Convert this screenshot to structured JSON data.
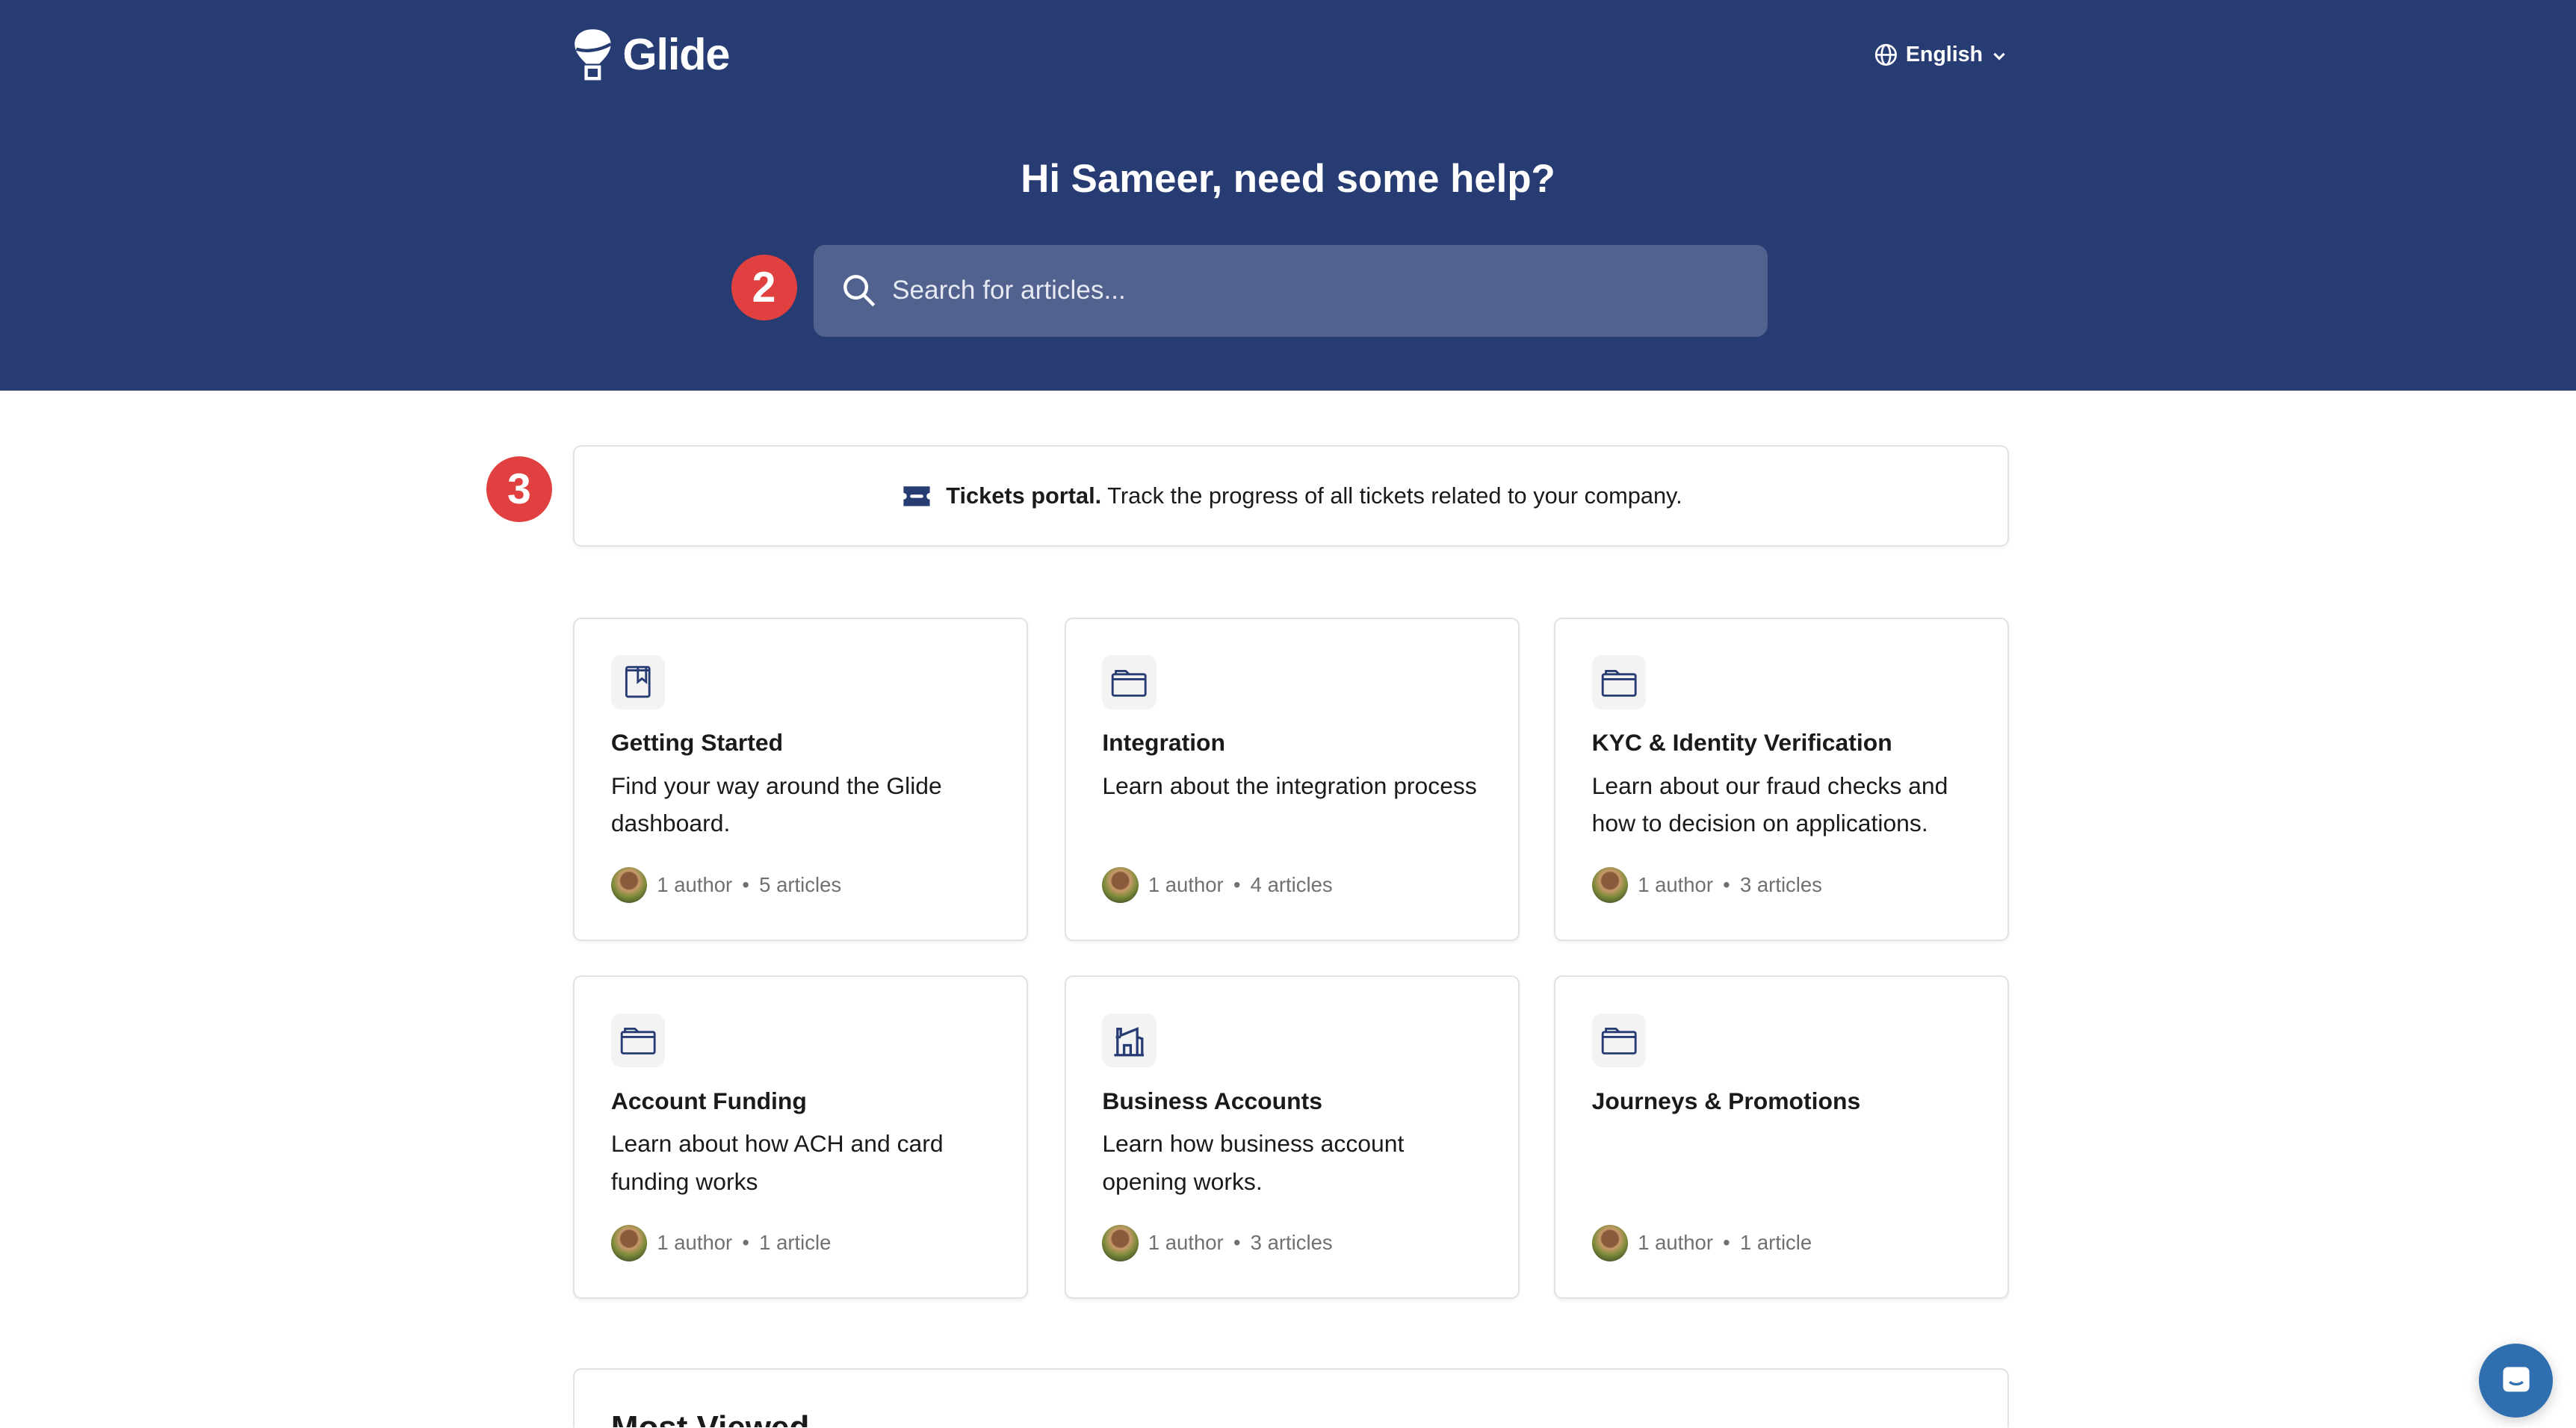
{
  "header": {
    "brand": "Glide",
    "language": "English",
    "greeting": "Hi Sameer, need some help?",
    "search_placeholder": "Search for articles..."
  },
  "annotations": {
    "badge_search": "2",
    "badge_tickets": "3"
  },
  "tickets": {
    "title": "Tickets portal.",
    "text": "Track the progress of all tickets related to your company."
  },
  "collections": [
    {
      "icon": "book-bookmark-icon",
      "title": "Getting Started",
      "description": "Find your way around the Glide dashboard.",
      "authors": "1 author",
      "articles": "5 articles"
    },
    {
      "icon": "folder-icon",
      "title": "Integration",
      "description": "Learn about the integration process",
      "authors": "1 author",
      "articles": "4 articles"
    },
    {
      "icon": "folder-icon",
      "title": "KYC & Identity Verification",
      "description": "Learn about our fraud checks and how to decision on applications.",
      "authors": "1 author",
      "articles": "3 articles"
    },
    {
      "icon": "folder-icon",
      "title": "Account Funding",
      "description": "Learn about how ACH and card funding works",
      "authors": "1 author",
      "articles": "1 article"
    },
    {
      "icon": "building-icon",
      "title": "Business Accounts",
      "description": "Learn how business account opening works.",
      "authors": "1 author",
      "articles": "3 articles"
    },
    {
      "icon": "folder-icon",
      "title": "Journeys & Promotions",
      "description": "",
      "authors": "1 author",
      "articles": "1 article"
    }
  ],
  "most_viewed": {
    "title": "Most Viewed"
  },
  "colors": {
    "header_bg": "#263c73",
    "accent": "#263c73",
    "badge": "#e0403f",
    "chat": "#2f6fb0"
  }
}
